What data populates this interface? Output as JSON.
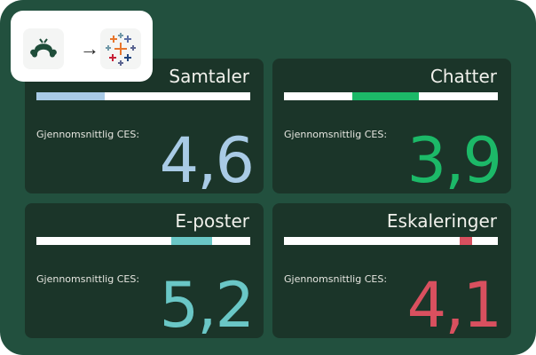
{
  "integration": {
    "from_icon": "surveymonkey-logo-icon",
    "arrow": "→",
    "to_icon": "tableau-logo-icon"
  },
  "cards": [
    {
      "title": "Samtaler",
      "label": "Gjennomsnittlig CES:",
      "value": "4,6",
      "color": "#a9cbe6",
      "segment_start": 0,
      "segment_end": 0.32
    },
    {
      "title": "Chatter",
      "label": "Gjennomsnittlig CES:",
      "value": "3,9",
      "color": "#1cb968",
      "segment_start": 0.32,
      "segment_end": 0.63
    },
    {
      "title": "E-poster",
      "label": "Gjennomsnittlig CES:",
      "value": "5,2",
      "color": "#6ac7c6",
      "segment_start": 0.63,
      "segment_end": 0.82
    },
    {
      "title": "Eskaleringer",
      "label": "Gjennomsnittlig CES:",
      "value": "4,1",
      "color": "#d9505f",
      "segment_start": 0.82,
      "segment_end": 0.88
    }
  ]
}
